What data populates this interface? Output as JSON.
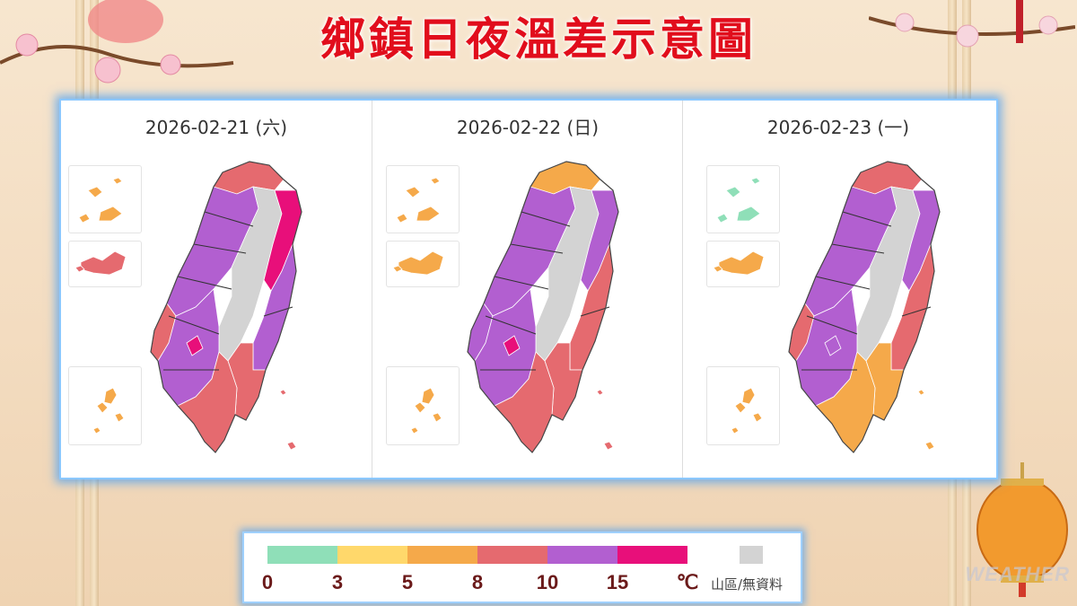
{
  "title": "鄉鎮日夜溫差示意圖",
  "panels": [
    {
      "date": "2026-02-21 (六)",
      "colors": {
        "north_coast": "#e56a6f",
        "northwest": "#b25fd0",
        "mountain": "#d3d3d3",
        "east_upper": "#e80f7a",
        "east_lower": "#b25fd0",
        "southwest": "#b25fd0",
        "south_tip": "#e56a6f",
        "west_coast": "#e56a6f",
        "southeast": "#e56a6f",
        "hotspot": "#e80f7a",
        "matsu": "#f5a94a",
        "kinmen": "#e56a6f",
        "penghu": "#f5a94a"
      }
    },
    {
      "date": "2026-02-22 (日)",
      "colors": {
        "north_coast": "#f5a94a",
        "northwest": "#b25fd0",
        "mountain": "#d3d3d3",
        "east_upper": "#b25fd0",
        "east_lower": "#e56a6f",
        "southwest": "#b25fd0",
        "south_tip": "#e56a6f",
        "west_coast": "#b25fd0",
        "southeast": "#e56a6f",
        "hotspot": "#e80f7a",
        "matsu": "#f5a94a",
        "kinmen": "#f5a94a",
        "penghu": "#f5a94a"
      }
    },
    {
      "date": "2026-02-23 (一)",
      "colors": {
        "north_coast": "#e56a6f",
        "northwest": "#b25fd0",
        "mountain": "#d3d3d3",
        "east_upper": "#b25fd0",
        "east_lower": "#e56a6f",
        "southwest": "#b25fd0",
        "south_tip": "#f5a94a",
        "west_coast": "#e56a6f",
        "southeast": "#f5a94a",
        "hotspot": "#b25fd0",
        "matsu": "#8fdfb8",
        "kinmen": "#f5a94a",
        "penghu": "#f5a94a"
      }
    }
  ],
  "legend": {
    "colors": [
      "#8fdfb8",
      "#ffd86b",
      "#f5a94a",
      "#e56a6f",
      "#b25fd0",
      "#e80f7a"
    ],
    "ticks": [
      "0",
      "3",
      "5",
      "8",
      "10",
      "15"
    ],
    "unit": "℃",
    "na_color": "#d3d3d3",
    "na_label": "山區/無資料"
  },
  "watermark": "WEATHER"
}
